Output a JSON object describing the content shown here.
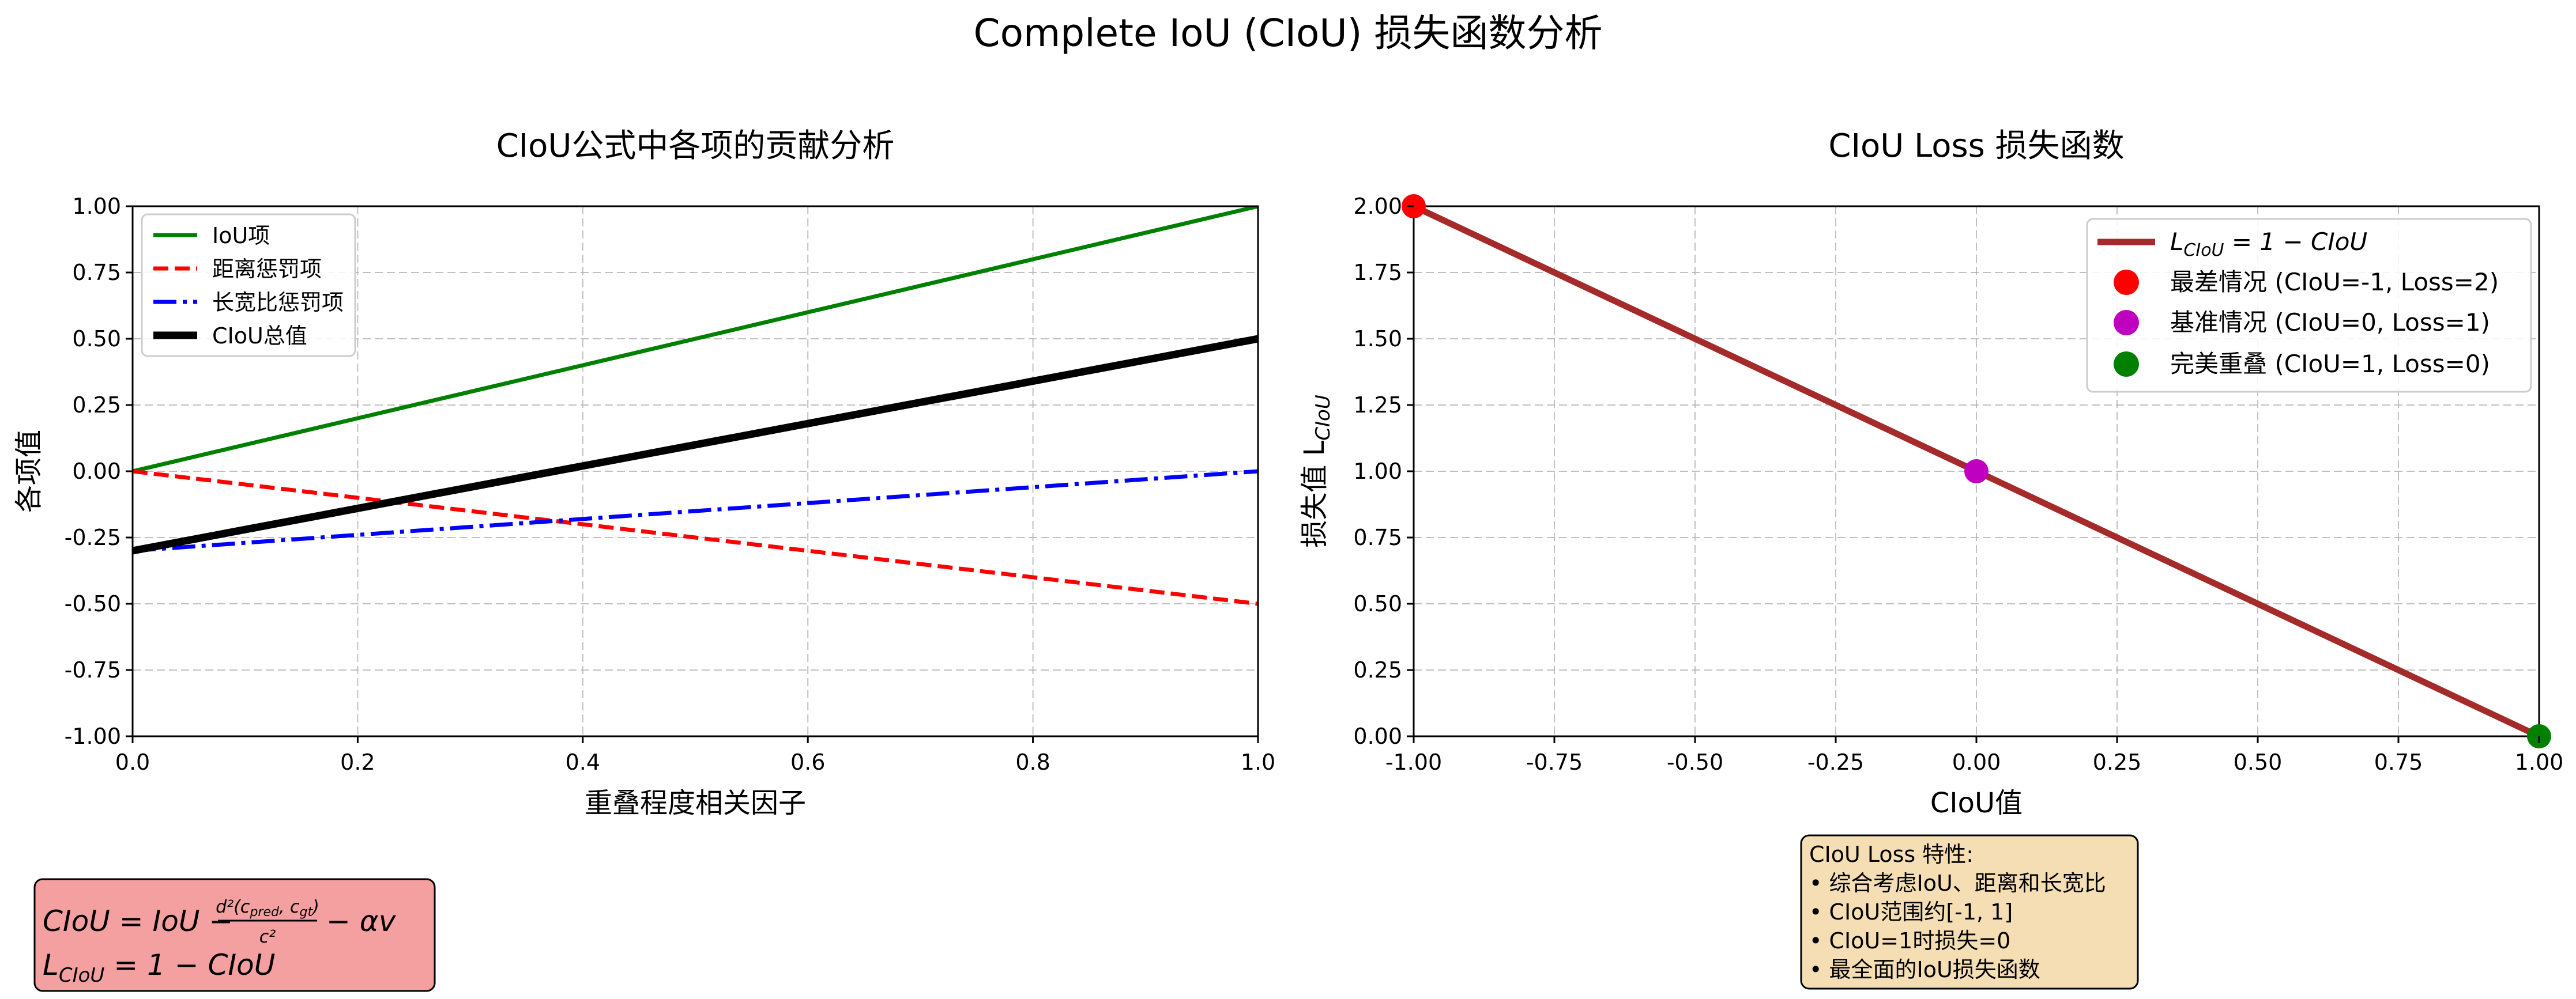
{
  "figure": {
    "title": "Complete IoU (CIoU) 损失函数分析"
  },
  "chart_data": [
    {
      "type": "line",
      "title": "CIoU公式中各项的贡献分析",
      "xlabel": "重叠程度相关因子",
      "ylabel": "各项值",
      "xlim": [
        0,
        1
      ],
      "ylim": [
        -1,
        1
      ],
      "x_ticks": [
        0,
        0.2,
        0.4,
        0.6,
        0.8,
        1.0
      ],
      "x_tick_labels": [
        "0.0",
        "0.2",
        "0.4",
        "0.6",
        "0.8",
        "1.0"
      ],
      "y_ticks": [
        -1,
        -0.75,
        -0.5,
        -0.25,
        0,
        0.25,
        0.5,
        0.75,
        1.0
      ],
      "y_tick_labels": [
        "-1.00",
        "-0.75",
        "-0.50",
        "-0.25",
        "0.00",
        "0.25",
        "0.50",
        "0.75",
        "1.00"
      ],
      "grid": true,
      "legend_position": "upper-left",
      "series": [
        {
          "name": "IoU项",
          "x": [
            0,
            1
          ],
          "y": [
            0,
            1
          ],
          "color": "#008000",
          "style": "solid",
          "width": 7
        },
        {
          "name": "距离惩罚项",
          "x": [
            0,
            1
          ],
          "y": [
            0,
            -0.5
          ],
          "color": "#ff0000",
          "style": "dashed",
          "width": 7
        },
        {
          "name": "长宽比惩罚项",
          "x": [
            0,
            1
          ],
          "y": [
            -0.3,
            0
          ],
          "color": "#0000ff",
          "style": "dashdot",
          "width": 7
        },
        {
          "name": "CIoU总值",
          "x": [
            0,
            1
          ],
          "y": [
            -0.3,
            0.5
          ],
          "color": "#000000",
          "style": "solid",
          "width": 13
        }
      ],
      "formula_box": {
        "line1": "CIoU = IoU − d²(c_pred, c_gt)/c² − αv",
        "line1_parts": {
          "lhs": "CIoU = IoU −",
          "num": "d²(c",
          "num_sub1": "pred",
          "num_mid": ", c",
          "num_sub2": "gt",
          "num_end": ")",
          "den": "c²",
          "rhs": "− αv"
        },
        "line2_parts": {
          "lhs": "L",
          "sub": "CIoU",
          "rhs": " = 1 − CIoU"
        },
        "background": "#f4a0a0"
      }
    },
    {
      "type": "line",
      "title": "CIoU Loss 损失函数",
      "xlabel": "CIoU值",
      "ylabel_main": "损失值 L",
      "ylabel_sub": "CIoU",
      "xlim": [
        -1,
        1
      ],
      "ylim": [
        0,
        2
      ],
      "x_ticks": [
        -1,
        -0.75,
        -0.5,
        -0.25,
        0,
        0.25,
        0.5,
        0.75,
        1.0
      ],
      "x_tick_labels": [
        "-1.00",
        "-0.75",
        "-0.50",
        "-0.25",
        "0.00",
        "0.25",
        "0.50",
        "0.75",
        "1.00"
      ],
      "y_ticks": [
        0,
        0.25,
        0.5,
        0.75,
        1.0,
        1.25,
        1.5,
        1.75,
        2.0
      ],
      "y_tick_labels": [
        "0.00",
        "0.25",
        "0.50",
        "0.75",
        "1.00",
        "1.25",
        "1.50",
        "1.75",
        "2.00"
      ],
      "grid": true,
      "legend_position": "upper-right",
      "series": [
        {
          "name": "L_CIoU = 1 − CIoU",
          "name_main": "L",
          "name_sub": "CIoU",
          "name_rest": " = 1 − CIoU",
          "x": [
            -1,
            1
          ],
          "y": [
            2,
            0
          ],
          "color": "#a52a2a",
          "style": "solid",
          "width": 11
        }
      ],
      "points": [
        {
          "name": "最差情况 (CIoU=-1, Loss=2)",
          "x": -1,
          "y": 2,
          "color": "#ff0000"
        },
        {
          "name": "基准情况 (CIoU=0, Loss=1)",
          "x": 0,
          "y": 1,
          "color": "#c000c0"
        },
        {
          "name": "完美重叠 (CIoU=1, Loss=0)",
          "x": 1,
          "y": 0,
          "color": "#008000"
        }
      ],
      "note_box": {
        "lines": [
          "CIoU Loss 特性:",
          "• 综合考虑IoU、距离和长宽比",
          "• CIoU范围约[-1, 1]",
          "• CIoU=1时损失=0",
          "• 最全面的IoU损失函数"
        ],
        "background": "#f5deb3"
      }
    }
  ]
}
